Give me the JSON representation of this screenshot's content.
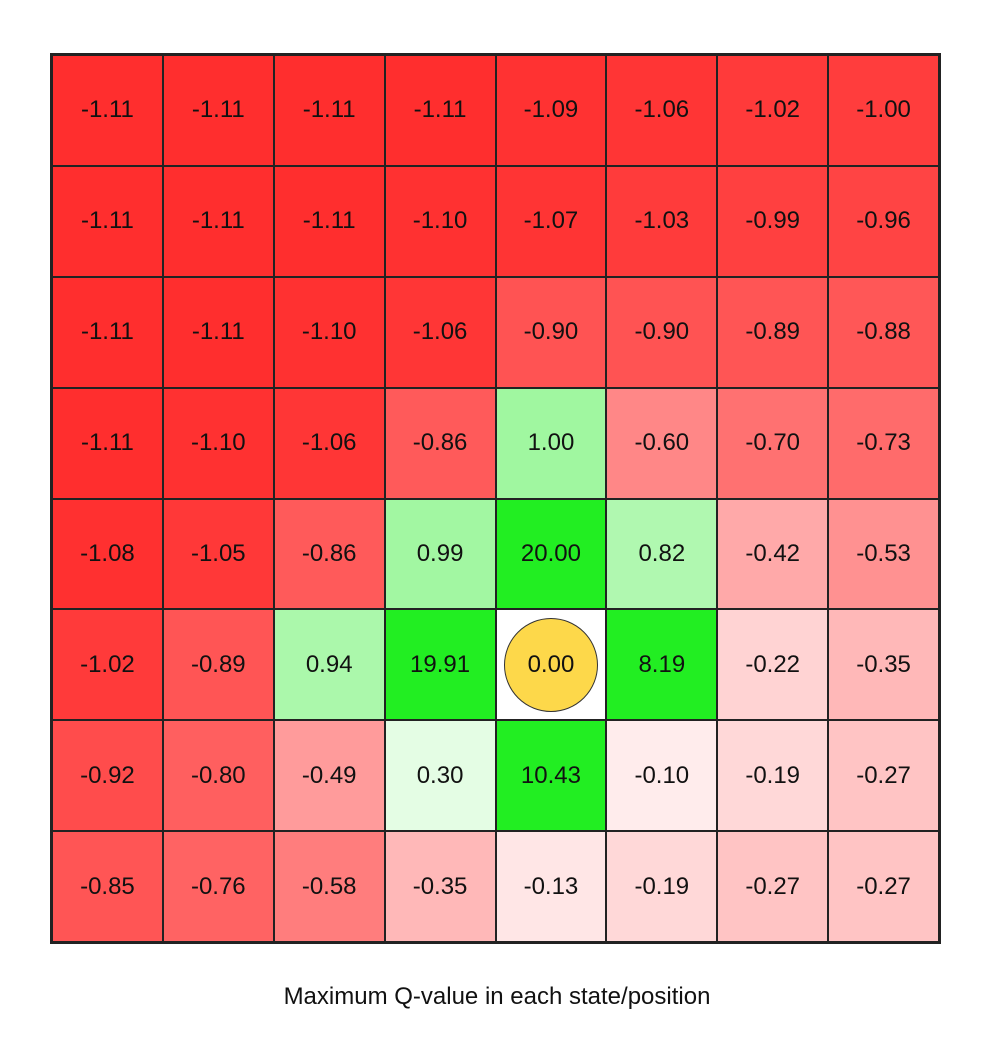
{
  "caption": "Maximum Q-value in each state/position",
  "colors": {
    "agent": "#fdd84a",
    "agent_cell": "#ffffff"
  },
  "grid": {
    "rows": 8,
    "cols": 8,
    "agent_cell": [
      5,
      4
    ],
    "values": [
      [
        "-1.11",
        "-1.11",
        "-1.11",
        "-1.11",
        "-1.09",
        "-1.06",
        "-1.02",
        "-1.00"
      ],
      [
        "-1.11",
        "-1.11",
        "-1.11",
        "-1.10",
        "-1.07",
        "-1.03",
        "-0.99",
        "-0.96"
      ],
      [
        "-1.11",
        "-1.11",
        "-1.10",
        "-1.06",
        "-0.90",
        "-0.90",
        "-0.89",
        "-0.88"
      ],
      [
        "-1.11",
        "-1.10",
        "-1.06",
        "-0.86",
        "1.00",
        "-0.60",
        "-0.70",
        "-0.73"
      ],
      [
        "-1.08",
        "-1.05",
        "-0.86",
        "0.99",
        "20.00",
        "0.82",
        "-0.42",
        "-0.53"
      ],
      [
        "-1.02",
        "-0.89",
        "0.94",
        "19.91",
        "0.00",
        "8.19",
        "-0.22",
        "-0.35"
      ],
      [
        "-0.92",
        "-0.80",
        "-0.49",
        "0.30",
        "10.43",
        "-0.10",
        "-0.19",
        "-0.27"
      ],
      [
        "-0.85",
        "-0.76",
        "-0.58",
        "-0.35",
        "-0.13",
        "-0.19",
        "-0.27",
        "-0.27"
      ]
    ],
    "fills": [
      [
        "#ff2e2e",
        "#ff2e2e",
        "#ff2e2e",
        "#ff2e2e",
        "#ff3232",
        "#ff3535",
        "#ff3a3a",
        "#ff3d3d"
      ],
      [
        "#ff2e2e",
        "#ff2e2e",
        "#ff2e2e",
        "#ff3131",
        "#ff3434",
        "#ff3b3b",
        "#ff4040",
        "#ff4444"
      ],
      [
        "#ff2e2e",
        "#ff2e2e",
        "#ff3131",
        "#ff3636",
        "#ff5353",
        "#ff5353",
        "#ff5555",
        "#ff5757"
      ],
      [
        "#ff2e2e",
        "#ff3131",
        "#ff3636",
        "#ff5a5a",
        "#a0f7a0",
        "#ff8787",
        "#ff7171",
        "#ff6b6b"
      ],
      [
        "#ff3030",
        "#ff3838",
        "#ff5a5a",
        "#a2f7a2",
        "#22ee22",
        "#b0f8b0",
        "#ffa9a9",
        "#ff9191"
      ],
      [
        "#ff3a3a",
        "#ff5555",
        "#abf8ab",
        "#22ee22",
        "#ffffff",
        "#22ee22",
        "#ffd3d3",
        "#ffb8b8"
      ],
      [
        "#ff4c4c",
        "#ff5f5f",
        "#ff9b9b",
        "#e4fde4",
        "#22ee22",
        "#ffecec",
        "#ffd8d8",
        "#ffc4c4"
      ],
      [
        "#ff5555",
        "#ff6363",
        "#ff7d7d",
        "#ffb8b8",
        "#ffe6e6",
        "#ffd8d8",
        "#ffc4c4",
        "#ffc4c4"
      ]
    ]
  }
}
